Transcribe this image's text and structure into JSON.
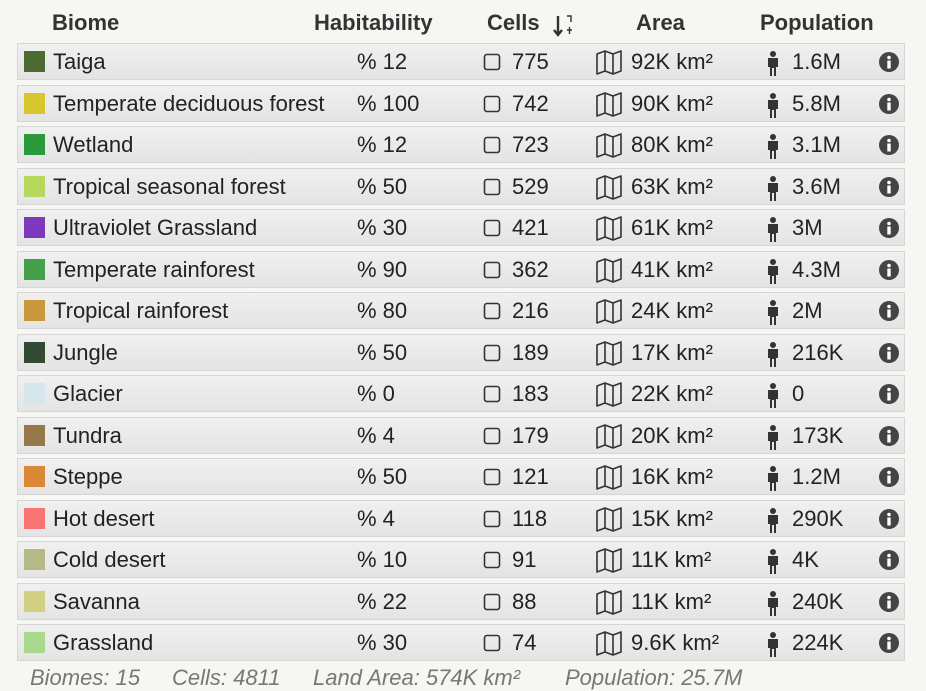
{
  "header": {
    "biome": "Biome",
    "habitability": "Habitability",
    "cells": "Cells",
    "area": "Area",
    "population": "Population"
  },
  "rows": [
    {
      "name": "Taiga",
      "color": "#4b6b32",
      "habitability": "% 12",
      "cells": "775",
      "area": "92K km²",
      "population": "1.6M"
    },
    {
      "name": "Temperate deciduous forest",
      "color": "#d8c62e",
      "habitability": "% 100",
      "cells": "742",
      "area": "90K km²",
      "population": "5.8M"
    },
    {
      "name": "Wetland",
      "color": "#2b9a3d",
      "habitability": "% 12",
      "cells": "723",
      "area": "80K km²",
      "population": "3.1M"
    },
    {
      "name": "Tropical seasonal forest",
      "color": "#b6d95d",
      "habitability": "% 50",
      "cells": "529",
      "area": "63K km²",
      "population": "3.6M"
    },
    {
      "name": "Ultraviolet Grassland",
      "color": "#7d38bb",
      "habitability": "% 30",
      "cells": "421",
      "area": "61K km²",
      "population": "3M"
    },
    {
      "name": "Temperate rainforest",
      "color": "#45a04a",
      "habitability": "% 90",
      "cells": "362",
      "area": "41K km²",
      "population": "4.3M"
    },
    {
      "name": "Tropical rainforest",
      "color": "#c9973c",
      "habitability": "% 80",
      "cells": "216",
      "area": "24K km²",
      "population": "2M"
    },
    {
      "name": "Jungle",
      "color": "#344b33",
      "habitability": "% 50",
      "cells": "189",
      "area": "17K km²",
      "population": "216K"
    },
    {
      "name": "Glacier",
      "color": "#d6e6ec",
      "habitability": "% 0",
      "cells": "183",
      "area": "22K km²",
      "population": "0"
    },
    {
      "name": "Tundra",
      "color": "#96784b",
      "habitability": "% 4",
      "cells": "179",
      "area": "20K km²",
      "population": "173K"
    },
    {
      "name": "Steppe",
      "color": "#da8836",
      "habitability": "% 50",
      "cells": "121",
      "area": "16K km²",
      "population": "1.2M"
    },
    {
      "name": "Hot desert",
      "color": "#f97575",
      "habitability": "% 4",
      "cells": "118",
      "area": "15K km²",
      "population": "290K"
    },
    {
      "name": "Cold desert",
      "color": "#b5b887",
      "habitability": "% 10",
      "cells": "91",
      "area": "11K km²",
      "population": "4K"
    },
    {
      "name": "Savanna",
      "color": "#d2d082",
      "habitability": "% 22",
      "cells": "88",
      "area": "11K km²",
      "population": "240K"
    },
    {
      "name": "Grassland",
      "color": "#a9d98c",
      "habitability": "% 30",
      "cells": "74",
      "area": "9.6K km²",
      "population": "224K"
    }
  ],
  "footer": {
    "biomes": "Biomes: 15",
    "cells": "Cells: 4811",
    "land_area": "Land Area: 574K km²",
    "population": "Population: 25.7M"
  }
}
